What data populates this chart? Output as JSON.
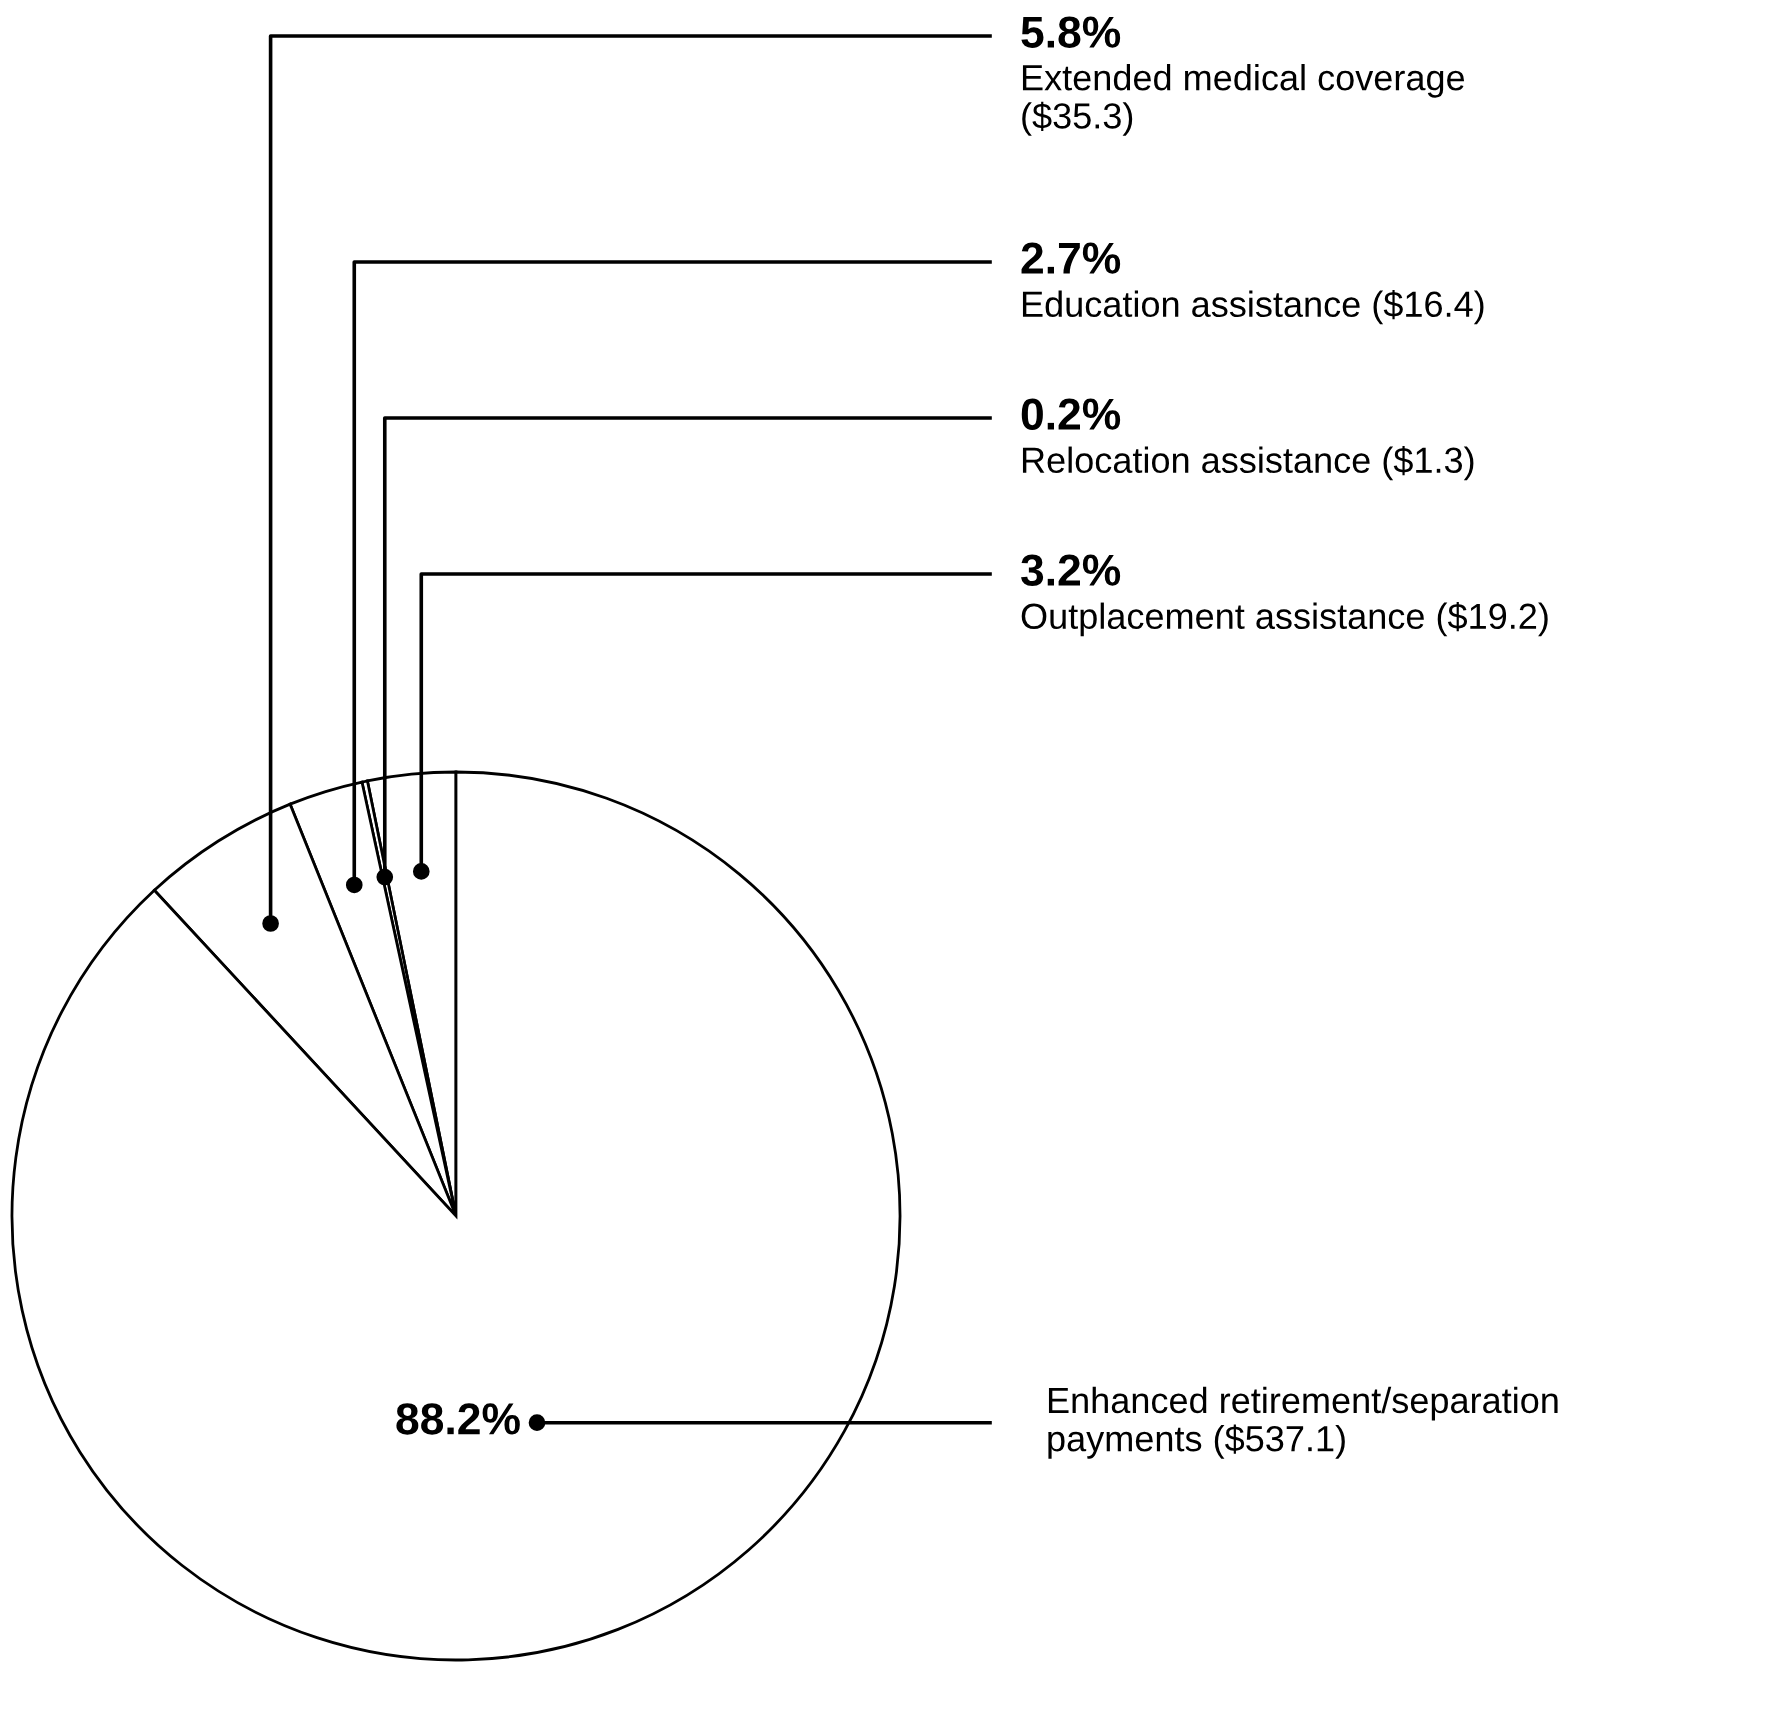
{
  "chart_data": {
    "type": "pie",
    "categories": [
      "Outplacement assistance ($19.2)",
      "Relocation assistance ($1.3)",
      "Education assistance ($16.4)",
      "Extended medical coverage\n($35.3)",
      "Enhanced retirement/separation\npayments ($537.1)"
    ],
    "values": [
      3.2,
      0.2,
      2.7,
      5.8,
      88.2
    ],
    "value_labels": [
      "3.2%",
      "0.2%",
      "2.7%",
      "5.8%",
      "88.2%"
    ],
    "colors": [
      "#ffffff",
      "#ffffff",
      "#ffffff",
      "#ffffff",
      "#ffffff"
    ]
  }
}
